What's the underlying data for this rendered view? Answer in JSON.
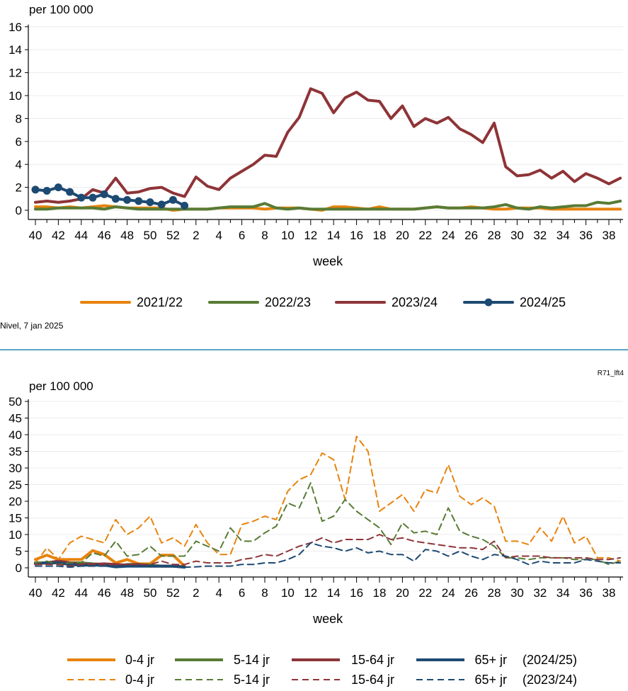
{
  "colors": {
    "2021/22": "#e8830d",
    "2022/23": "#587b34",
    "2023/24": "#8e3438",
    "2024/25": "#1d4a72",
    "grid": "#ececec",
    "divider": "#5aa6c8"
  },
  "source_note": "Nivel, 7 jan 2025",
  "chart_code": "R71_lft4",
  "chart_data": [
    {
      "type": "line",
      "ylabel": "per 100 000",
      "xlabel": "week",
      "ylim": [
        0,
        16
      ],
      "yticks": [
        "0",
        "2",
        "4",
        "6",
        "8",
        "10",
        "12",
        "14",
        "16"
      ],
      "xtick_labels": [
        "40",
        "42",
        "44",
        "46",
        "48",
        "50",
        "52",
        "2",
        "4",
        "6",
        "8",
        "10",
        "12",
        "14",
        "16",
        "18",
        "20",
        "22",
        "24",
        "26",
        "28",
        "30",
        "32",
        "34",
        "36",
        "38"
      ],
      "x_weeks": [
        "40",
        "41",
        "42",
        "43",
        "44",
        "45",
        "46",
        "47",
        "48",
        "49",
        "50",
        "51",
        "52",
        "1",
        "2",
        "3",
        "4",
        "5",
        "6",
        "7",
        "8",
        "9",
        "10",
        "11",
        "12",
        "13",
        "14",
        "15",
        "16",
        "17",
        "18",
        "19",
        "20",
        "21",
        "22",
        "23",
        "24",
        "25",
        "26",
        "27",
        "28",
        "29",
        "30",
        "31",
        "32",
        "33",
        "34",
        "35",
        "36",
        "37",
        "38",
        "39"
      ],
      "grid": true,
      "legend_position": "bottom",
      "series": [
        {
          "name": "2021/22",
          "markers": false,
          "values": [
            0.3,
            0.3,
            0.2,
            0.3,
            0.2,
            0.3,
            0.4,
            0.3,
            0.2,
            0.2,
            0.2,
            0.2,
            0.0,
            0.1,
            0.1,
            0.1,
            0.2,
            0.2,
            0.2,
            0.2,
            0.1,
            0.2,
            0.2,
            0.2,
            0.1,
            0.0,
            0.3,
            0.3,
            0.2,
            0.1,
            0.3,
            0.1,
            0.1,
            0.1,
            0.2,
            0.3,
            0.2,
            0.2,
            0.3,
            0.2,
            0.1,
            0.1,
            0.2,
            0.2,
            0.2,
            0.1,
            0.1,
            0.1,
            0.1,
            0.1,
            0.1,
            0.1
          ]
        },
        {
          "name": "2022/23",
          "markers": false,
          "values": [
            0.1,
            0.1,
            0.2,
            0.2,
            0.2,
            0.2,
            0.1,
            0.3,
            0.2,
            0.1,
            0.1,
            0.1,
            0.1,
            0.1,
            0.1,
            0.1,
            0.2,
            0.3,
            0.3,
            0.3,
            0.6,
            0.2,
            0.1,
            0.2,
            0.1,
            0.1,
            0.1,
            0.1,
            0.1,
            0.1,
            0.1,
            0.1,
            0.1,
            0.1,
            0.2,
            0.3,
            0.2,
            0.2,
            0.2,
            0.2,
            0.3,
            0.5,
            0.2,
            0.1,
            0.3,
            0.2,
            0.3,
            0.4,
            0.4,
            0.7,
            0.6,
            0.8
          ]
        },
        {
          "name": "2023/24",
          "markers": false,
          "values": [
            0.7,
            0.8,
            0.7,
            0.8,
            1.0,
            1.8,
            1.5,
            2.8,
            1.5,
            1.6,
            1.9,
            2.0,
            1.5,
            1.2,
            2.9,
            2.1,
            1.8,
            2.8,
            3.4,
            4.0,
            4.8,
            4.7,
            6.8,
            8.1,
            10.6,
            10.2,
            8.5,
            9.8,
            10.3,
            9.6,
            9.5,
            8.0,
            9.1,
            7.3,
            8.0,
            7.6,
            8.1,
            7.1,
            6.6,
            5.9,
            7.6,
            3.8,
            3.0,
            3.1,
            3.5,
            2.8,
            3.4,
            2.5,
            3.2,
            2.8,
            2.3,
            2.8
          ]
        },
        {
          "name": "2024/25",
          "markers": true,
          "values": [
            1.8,
            1.7,
            2.0,
            1.6,
            1.1,
            1.1,
            1.4,
            1.0,
            0.9,
            0.8,
            0.7,
            0.5,
            0.9,
            0.4
          ]
        }
      ]
    },
    {
      "type": "line",
      "ylabel": "per 100 000",
      "xlabel": "week",
      "ylim": [
        0,
        50
      ],
      "yticks": [
        "0",
        "5",
        "10",
        "15",
        "20",
        "25",
        "30",
        "35",
        "40",
        "45",
        "50"
      ],
      "xtick_labels": [
        "40",
        "42",
        "44",
        "46",
        "48",
        "50",
        "52",
        "2",
        "4",
        "6",
        "8",
        "10",
        "12",
        "14",
        "16",
        "18",
        "20",
        "22",
        "24",
        "26",
        "28",
        "30",
        "32",
        "34",
        "36",
        "38"
      ],
      "x_weeks": [
        "40",
        "41",
        "42",
        "43",
        "44",
        "45",
        "46",
        "47",
        "48",
        "49",
        "50",
        "51",
        "52",
        "1",
        "2",
        "3",
        "4",
        "5",
        "6",
        "7",
        "8",
        "9",
        "10",
        "11",
        "12",
        "13",
        "14",
        "15",
        "16",
        "17",
        "18",
        "19",
        "20",
        "21",
        "22",
        "23",
        "24",
        "25",
        "26",
        "27",
        "28",
        "29",
        "30",
        "31",
        "32",
        "33",
        "34",
        "35",
        "36",
        "37",
        "38",
        "39"
      ],
      "grid": true,
      "legend_position": "bottom",
      "legend_season_labels": [
        "(2024/25)",
        "(2023/24)"
      ],
      "series": [
        {
          "name": "0-4 jr",
          "season": "2024/25",
          "dash": false,
          "values": [
            2.5,
            3.8,
            2.5,
            2.5,
            2.5,
            5.2,
            4.0,
            1.5,
            2.5,
            1.2,
            1.2,
            3.8,
            3.8,
            0.5
          ]
        },
        {
          "name": "5-14 jr",
          "season": "2024/25",
          "dash": false,
          "values": [
            1.5,
            1.5,
            2.0,
            1.5,
            1.5,
            1.2,
            1.0,
            0.5,
            1.0,
            1.0,
            0.8,
            0.5,
            0.5,
            0.3
          ]
        },
        {
          "name": "15-64 jr",
          "season": "2024/25",
          "dash": false,
          "values": [
            1.2,
            1.5,
            2.0,
            1.5,
            1.0,
            1.0,
            1.2,
            1.0,
            0.8,
            1.0,
            0.5,
            0.5,
            0.5,
            0.3
          ]
        },
        {
          "name": "65+ jr",
          "season": "2024/25",
          "dash": false,
          "values": [
            1.5,
            1.5,
            1.5,
            1.0,
            0.8,
            0.8,
            0.8,
            0.3,
            0.5,
            0.5,
            0.5,
            0.5,
            0.5,
            0.2
          ]
        },
        {
          "name": "0-4 jr",
          "season": "2023/24",
          "dash": true,
          "values": [
            1.5,
            6.0,
            2.5,
            7.5,
            9.5,
            8.5,
            7.5,
            14.5,
            10.0,
            12.0,
            15.5,
            7.5,
            9.0,
            6.5,
            13.0,
            7.5,
            4.0,
            4.0,
            13.0,
            14.0,
            15.5,
            14.5,
            23.0,
            26.5,
            28.0,
            34.5,
            32.5,
            20.5,
            39.5,
            35.0,
            17.0,
            19.5,
            22.0,
            17.0,
            23.5,
            22.5,
            31.0,
            21.5,
            19.0,
            21.0,
            18.5,
            8.0,
            8.0,
            7.0,
            12.0,
            8.0,
            15.5,
            7.5,
            9.5,
            3.0,
            3.0,
            2.0
          ]
        },
        {
          "name": "5-14 jr",
          "season": "2023/24",
          "dash": true,
          "values": [
            1.5,
            2.0,
            1.0,
            1.5,
            1.5,
            4.5,
            3.5,
            8.0,
            3.5,
            4.0,
            6.5,
            3.5,
            3.5,
            3.5,
            8.0,
            6.5,
            5.0,
            12.0,
            8.0,
            8.0,
            10.5,
            12.5,
            19.5,
            18.0,
            25.5,
            14.0,
            15.5,
            20.5,
            17.0,
            14.5,
            12.0,
            7.0,
            13.5,
            10.5,
            11.0,
            10.0,
            18.0,
            11.0,
            9.5,
            8.5,
            6.5,
            3.0,
            3.0,
            2.5,
            3.0,
            3.0,
            3.0,
            2.5,
            2.5,
            2.5,
            1.0,
            2.0
          ]
        },
        {
          "name": "15-64 jr",
          "season": "2023/24",
          "dash": true,
          "values": [
            1.0,
            1.0,
            1.0,
            0.5,
            1.0,
            1.0,
            1.0,
            1.0,
            1.0,
            1.0,
            1.0,
            2.0,
            1.0,
            1.0,
            2.0,
            1.5,
            1.5,
            1.5,
            2.5,
            3.0,
            4.0,
            3.5,
            5.0,
            6.5,
            7.5,
            9.0,
            7.5,
            8.5,
            8.5,
            8.5,
            10.0,
            8.5,
            9.0,
            8.0,
            7.5,
            7.0,
            6.5,
            6.0,
            6.0,
            5.5,
            8.0,
            3.0,
            3.5,
            3.5,
            3.5,
            3.0,
            3.0,
            3.0,
            3.0,
            2.5,
            2.5,
            3.0
          ]
        },
        {
          "name": "65+ jr",
          "season": "2023/24",
          "dash": true,
          "values": [
            0.5,
            0.5,
            0.5,
            0.2,
            0.5,
            0.5,
            0.5,
            0.5,
            0.5,
            0.5,
            0.5,
            0.5,
            0.3,
            0.2,
            0.3,
            0.5,
            0.5,
            0.5,
            1.0,
            1.0,
            1.5,
            1.5,
            2.5,
            4.0,
            7.5,
            6.5,
            6.0,
            5.0,
            6.0,
            4.5,
            5.0,
            4.0,
            4.0,
            2.0,
            5.5,
            5.0,
            3.5,
            5.0,
            3.5,
            2.5,
            4.0,
            3.5,
            2.5,
            1.0,
            2.0,
            1.5,
            1.5,
            1.5,
            2.5,
            2.0,
            1.5,
            1.5
          ]
        }
      ]
    }
  ]
}
